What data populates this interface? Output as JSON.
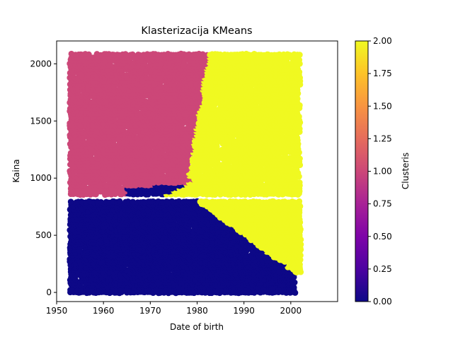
{
  "chart_data": {
    "type": "scatter",
    "title": "Klasterizacija KMeans",
    "xlabel": "Date of birth",
    "ylabel": "Kaina",
    "xlim": [
      1950,
      2010
    ],
    "ylim": [
      -80,
      2200
    ],
    "xticks": [
      1950,
      1960,
      1970,
      1980,
      1990,
      2000
    ],
    "yticks": [
      0,
      500,
      1000,
      1500,
      2000
    ],
    "grid": false,
    "colorbar": {
      "label": "Clusteris",
      "colormap": "plasma",
      "range": [
        0,
        2
      ],
      "ticks": [
        "0.00",
        "0.25",
        "0.50",
        "0.75",
        "1.00",
        "1.25",
        "1.50",
        "1.75",
        "2.00"
      ]
    },
    "clusters": [
      {
        "cluster": 0,
        "color": "#0d0887",
        "x_range": [
          1953,
          2001
        ],
        "y_range": [
          0,
          800
        ]
      },
      {
        "cluster": 1,
        "color": "#cc4778",
        "x_range": [
          1953,
          1983
        ],
        "y_range": [
          850,
          2100
        ]
      },
      {
        "cluster": 2,
        "color": "#f0f921",
        "x_range": [
          1978,
          2002
        ],
        "y_range": [
          170,
          2100
        ]
      }
    ]
  }
}
